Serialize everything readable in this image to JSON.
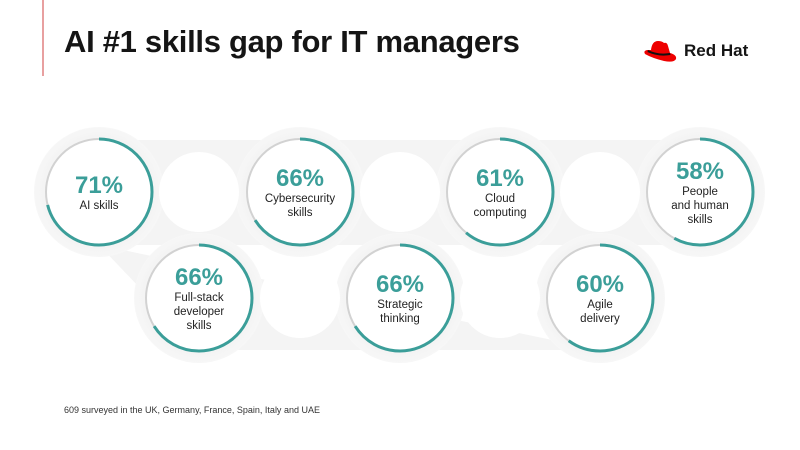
{
  "title": "AI #1 skills gap for IT managers",
  "logo": {
    "text": "Red Hat",
    "icon": "red-fedora-icon"
  },
  "colors": {
    "accent": "#3b9e99",
    "track": "#d2d2d2",
    "brand": "#ee0000"
  },
  "skills": [
    {
      "value": 71,
      "label": [
        "AI skills"
      ]
    },
    {
      "value": 66,
      "label": [
        "Cybersecurity",
        "skills"
      ]
    },
    {
      "value": 61,
      "label": [
        "Cloud",
        "computing"
      ]
    },
    {
      "value": 58,
      "label": [
        "People",
        "and human",
        "skills"
      ]
    },
    {
      "value": 66,
      "label": [
        "Full-stack",
        "developer",
        "skills"
      ]
    },
    {
      "value": 66,
      "label": [
        "Strategic",
        "thinking"
      ]
    },
    {
      "value": 60,
      "label": [
        "Agile",
        "delivery"
      ]
    }
  ],
  "footnote": "609 surveyed in the UK, Germany, France, Spain, Italy and UAE"
}
